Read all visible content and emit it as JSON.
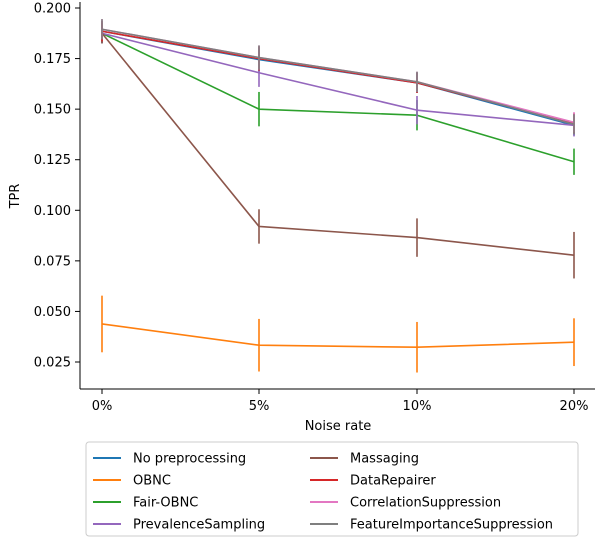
{
  "chart_data": {
    "type": "line",
    "xlabel": "Noise rate",
    "ylabel": "TPR",
    "categories": [
      "0%",
      "5%",
      "10%",
      "20%"
    ],
    "y_ticks": [
      "0.025",
      "0.050",
      "0.075",
      "0.100",
      "0.125",
      "0.150",
      "0.175",
      "0.200"
    ],
    "ylim": [
      0.012,
      0.2
    ],
    "grid": false,
    "legend_placement": "bottom, outside plot, two columns",
    "series": [
      {
        "name": "No preprocessing",
        "color": "#1f77b4",
        "values": [
          0.1885,
          0.1745,
          0.163,
          0.142
        ],
        "errors": [
          0.005,
          0.006,
          0.005,
          0.005
        ]
      },
      {
        "name": "OBNC",
        "color": "#ff7f0e",
        "values": [
          0.0438,
          0.0333,
          0.0323,
          0.0348
        ],
        "errors": [
          0.014,
          0.013,
          0.0125,
          0.0118
        ]
      },
      {
        "name": "Fair-OBNC",
        "color": "#2ca02c",
        "values": [
          0.1875,
          0.15,
          0.147,
          0.124
        ],
        "errors": [
          0.005,
          0.0085,
          0.0075,
          0.0065
        ]
      },
      {
        "name": "PrevalenceSampling",
        "color": "#9467bd",
        "values": [
          0.1875,
          0.168,
          0.1495,
          0.142
        ],
        "errors": [
          0.005,
          0.007,
          0.007,
          0.0055
        ]
      },
      {
        "name": "Massaging",
        "color": "#8c564b",
        "values": [
          0.1875,
          0.092,
          0.0865,
          0.0778
        ],
        "errors": [
          0.005,
          0.0085,
          0.0095,
          0.0115
        ]
      },
      {
        "name": "DataRepairer",
        "color": "#d62728",
        "values": [
          0.1885,
          0.175,
          0.163,
          0.143
        ],
        "errors": [
          0.005,
          0.006,
          0.005,
          0.005
        ]
      },
      {
        "name": "CorrelationSuppression",
        "color": "#e377c2",
        "values": [
          0.1895,
          0.1755,
          0.1635,
          0.1435
        ],
        "errors": [
          0.005,
          0.006,
          0.005,
          0.005
        ]
      },
      {
        "name": "FeatureImportanceSuppression",
        "color": "#7f7f7f",
        "values": [
          0.1895,
          0.1755,
          0.1635,
          0.1425
        ],
        "errors": [
          0.005,
          0.006,
          0.005,
          0.005
        ]
      }
    ]
  }
}
